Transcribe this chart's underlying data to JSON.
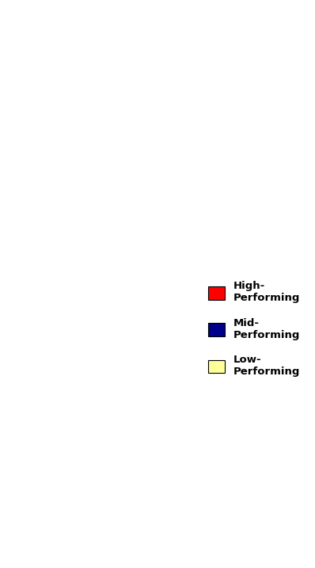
{
  "legend_labels": [
    "High-\nPerforming",
    "Mid-\nPerforming",
    "Low-\nPerforming"
  ],
  "high_color": "#FF0000",
  "mid_color": "#00008B",
  "low_color": "#FFFF99",
  "lake_color": "#ADD8E6",
  "border_color": "#222222",
  "background_color": "#FFFFFF",
  "figsize": [
    3.98,
    7.16
  ],
  "dpi": 100,
  "legend_fontsize": 9.5
}
